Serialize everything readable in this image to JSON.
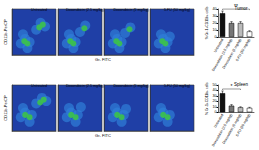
{
  "row_labels": [
    {
      "ylabel": "CD11b-PerCP",
      "xlabel": "Gr- FITC"
    },
    {
      "ylabel": "CD11b-PerCP",
      "xlabel": "Gr- FITC"
    }
  ],
  "chart_data": [
    {
      "type": "scatter",
      "row": 0,
      "title": "Untreated",
      "xlim": [
        0,
        100
      ],
      "ylim": [
        0,
        100
      ],
      "tick_labels": false,
      "series": [
        {
          "color": "#2f7fd8",
          "points": [
            [
              20,
              25
            ],
            [
              30,
              35
            ],
            [
              40,
              28
            ],
            [
              25,
              45
            ],
            [
              55,
              55
            ],
            [
              65,
              70
            ],
            [
              75,
              62
            ],
            [
              35,
              15
            ]
          ]
        },
        {
          "color": "#3cc24a",
          "points": [
            [
              28,
              30
            ],
            [
              35,
              25
            ],
            [
              70,
              66
            ],
            [
              62,
              60
            ]
          ]
        }
      ]
    },
    {
      "type": "scatter",
      "row": 0,
      "title": "Doxorubicin (2.5 mg/kg)",
      "xlim": [
        0,
        100
      ],
      "ylim": [
        0,
        100
      ],
      "tick_labels": false,
      "series": [
        {
          "color": "#2f7fd8",
          "points": [
            [
              20,
              25
            ],
            [
              30,
              35
            ],
            [
              40,
              28
            ],
            [
              25,
              45
            ],
            [
              50,
              50
            ],
            [
              62,
              64
            ],
            [
              35,
              15
            ]
          ]
        },
        {
          "color": "#3cc24a",
          "points": [
            [
              28,
              30
            ],
            [
              35,
              25
            ],
            [
              60,
              58
            ]
          ]
        }
      ]
    },
    {
      "type": "scatter",
      "row": 0,
      "title": "Doxorubicin (5 mg/kg)",
      "xlim": [
        0,
        100
      ],
      "ylim": [
        0,
        100
      ],
      "tick_labels": false,
      "series": [
        {
          "color": "#2f7fd8",
          "points": [
            [
              20,
              25
            ],
            [
              30,
              35
            ],
            [
              40,
              28
            ],
            [
              25,
              45
            ],
            [
              48,
              48
            ],
            [
              60,
              60
            ],
            [
              35,
              15
            ]
          ]
        },
        {
          "color": "#3cc24a",
          "points": [
            [
              28,
              30
            ],
            [
              35,
              25
            ],
            [
              58,
              56
            ]
          ]
        }
      ]
    },
    {
      "type": "scatter",
      "row": 0,
      "title": "5-FU (50 mg/kg)",
      "xlim": [
        0,
        100
      ],
      "ylim": [
        0,
        100
      ],
      "tick_labels": false,
      "series": [
        {
          "color": "#2f7fd8",
          "points": [
            [
              20,
              25
            ],
            [
              30,
              35
            ],
            [
              40,
              28
            ],
            [
              25,
              45
            ],
            [
              35,
              15
            ],
            [
              45,
              40
            ]
          ]
        },
        {
          "color": "#3cc24a",
          "points": [
            [
              28,
              30
            ],
            [
              35,
              25
            ]
          ]
        }
      ]
    },
    {
      "type": "bar",
      "row": 0,
      "title": "Tumor",
      "ylabel": "% Gr-1+CD11b+ cells",
      "categories": [
        "Untreated",
        "Doxorubicin (2.5 mg/kg)",
        "Doxorubicin (5 mg/kg)",
        "5-FU (50 mg/kg)"
      ],
      "values": [
        34,
        20,
        20,
        8
      ],
      "errors": [
        3,
        2,
        2,
        1
      ],
      "colors": [
        "#111111",
        "#777777",
        "#bbbbbb",
        "#ffffff"
      ],
      "ylim": [
        0,
        40
      ],
      "yticks": [
        0,
        10,
        20,
        30,
        40
      ],
      "annotations": [
        {
          "text": "**",
          "categories": [
            "Untreated",
            "5-FU (50 mg/kg)"
          ]
        }
      ]
    },
    {
      "type": "scatter",
      "row": 1,
      "title": "Untreated",
      "xlim": [
        0,
        100
      ],
      "ylim": [
        0,
        100
      ],
      "tick_labels": false,
      "series": [
        {
          "color": "#2f7fd8",
          "points": [
            [
              20,
              30
            ],
            [
              30,
              40
            ],
            [
              45,
              35
            ],
            [
              25,
              50
            ],
            [
              55,
              60
            ],
            [
              68,
              72
            ],
            [
              78,
              65
            ],
            [
              40,
              20
            ]
          ]
        },
        {
          "color": "#3cc24a",
          "points": [
            [
              30,
              35
            ],
            [
              40,
              30
            ],
            [
              72,
              68
            ],
            [
              64,
              62
            ]
          ]
        }
      ]
    },
    {
      "type": "scatter",
      "row": 1,
      "title": "Doxorubicin (2.5 mg/kg)",
      "xlim": [
        0,
        100
      ],
      "ylim": [
        0,
        100
      ],
      "tick_labels": false,
      "series": [
        {
          "color": "#2f7fd8",
          "points": [
            [
              20,
              30
            ],
            [
              30,
              40
            ],
            [
              45,
              35
            ],
            [
              25,
              50
            ],
            [
              52,
              52
            ],
            [
              40,
              20
            ]
          ]
        },
        {
          "color": "#3cc24a",
          "points": [
            [
              30,
              35
            ],
            [
              40,
              30
            ]
          ]
        }
      ]
    },
    {
      "type": "scatter",
      "row": 1,
      "title": "Doxorubicin (5 mg/kg)",
      "xlim": [
        0,
        100
      ],
      "ylim": [
        0,
        100
      ],
      "tick_labels": false,
      "series": [
        {
          "color": "#2f7fd8",
          "points": [
            [
              20,
              30
            ],
            [
              30,
              40
            ],
            [
              45,
              35
            ],
            [
              25,
              50
            ],
            [
              50,
              48
            ],
            [
              40,
              20
            ]
          ]
        },
        {
          "color": "#3cc24a",
          "points": [
            [
              30,
              35
            ],
            [
              40,
              30
            ]
          ]
        }
      ]
    },
    {
      "type": "scatter",
      "row": 1,
      "title": "5-FU (50 mg/kg)",
      "xlim": [
        0,
        100
      ],
      "ylim": [
        0,
        100
      ],
      "tick_labels": false,
      "series": [
        {
          "color": "#2f7fd8",
          "points": [
            [
              20,
              30
            ],
            [
              30,
              40
            ],
            [
              45,
              35
            ],
            [
              25,
              50
            ],
            [
              40,
              20
            ]
          ]
        },
        {
          "color": "#3cc24a",
          "points": [
            [
              30,
              35
            ],
            [
              40,
              30
            ]
          ]
        }
      ]
    },
    {
      "type": "bar",
      "row": 1,
      "title": "Spleen",
      "ylabel": "% Gr-1+CD11b+ cells",
      "categories": [
        "Untreated",
        "Doxorubicin (2.5 mg/kg)",
        "Doxorubicin (5 mg/kg)",
        "5-FU (50 mg/kg)"
      ],
      "values": [
        35,
        12,
        9,
        8
      ],
      "errors": [
        4,
        2,
        1,
        1
      ],
      "colors": [
        "#111111",
        "#777777",
        "#bbbbbb",
        "#ffffff"
      ],
      "ylim": [
        0,
        50
      ],
      "yticks": [
        0,
        10,
        20,
        30,
        40,
        50
      ],
      "annotations": [
        {
          "text": "*",
          "categories": [
            "Untreated",
            "Doxorubicin (5 mg/kg)"
          ]
        }
      ]
    }
  ]
}
